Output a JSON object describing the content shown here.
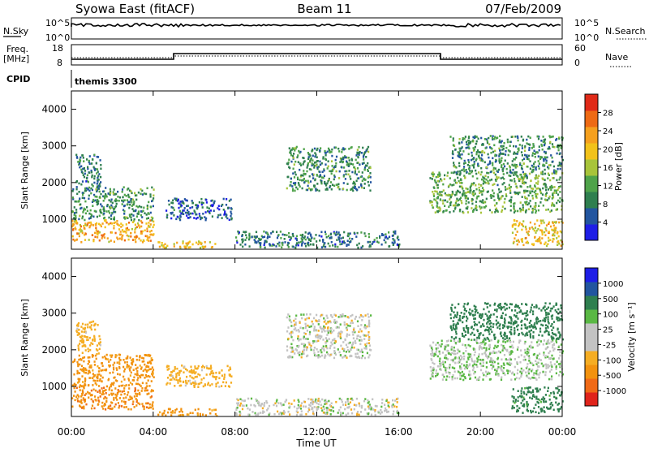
{
  "header": {
    "station": "Syowa East (fitACF)",
    "beam": "Beam 11",
    "date": "07/Feb/2009"
  },
  "top_panel": {
    "left_label": "N.Sky",
    "right_label": "N.Search",
    "left_ticks": [
      "10^5",
      "10^0"
    ],
    "right_ticks": [
      "10^5",
      "10^0"
    ]
  },
  "freq_panel": {
    "left_label_1": "Freq.",
    "left_label_2": "[MHz]",
    "left_ticks": [
      "18",
      "8"
    ],
    "right_ticks": [
      "60",
      "0"
    ],
    "right_label": "Nave",
    "cpid_label": "CPID",
    "cpid_value": "themis 3300"
  },
  "colors": {
    "power": [
      "#1e1ee6",
      "#22559f",
      "#2f7f4f",
      "#4fa34a",
      "#a8c43a",
      "#f2c21a",
      "#f5a01e",
      "#ee6a14",
      "#e02a18"
    ],
    "velocity": [
      "#e0241b",
      "#f06a17",
      "#f2920f",
      "#f5ad23",
      "#c3c3c3",
      "#c3c3c3",
      "#5ab844",
      "#2f7f4f",
      "#22559f",
      "#1e1ee6"
    ]
  },
  "chart_data": [
    {
      "type": "heatmap",
      "title": "Power",
      "ylabel": "Slant Range [km]",
      "xlabel": "",
      "x_ticks": [
        "00:00",
        "04:00",
        "08:00",
        "12:00",
        "16:00",
        "20:00",
        "00:00"
      ],
      "x_range_hours": [
        0,
        24
      ],
      "y_ticks": [
        "1000",
        "2000",
        "3000",
        "4000"
      ],
      "ylim": [
        180,
        4500
      ],
      "colorbar": {
        "label": "Power [dB]",
        "ticks": [
          "4",
          "8",
          "12",
          "16",
          "20",
          "24",
          "28"
        ],
        "range": [
          0,
          32
        ]
      },
      "regions": [
        {
          "t": [
            0.0,
            4.0
          ],
          "r": [
            400,
            1000
          ],
          "value": 22
        },
        {
          "t": [
            0.0,
            4.0
          ],
          "r": [
            1000,
            1900
          ],
          "value": 10
        },
        {
          "t": [
            0.2,
            1.4
          ],
          "r": [
            1900,
            2800
          ],
          "value": 8
        },
        {
          "t": [
            4.2,
            7.2
          ],
          "r": [
            220,
            420
          ],
          "value": 20
        },
        {
          "t": [
            4.6,
            7.8
          ],
          "r": [
            1000,
            1600
          ],
          "value": 6
        },
        {
          "t": [
            10.5,
            14.6
          ],
          "r": [
            1800,
            3000
          ],
          "value": 10
        },
        {
          "t": [
            17.5,
            24.0
          ],
          "r": [
            1200,
            2300
          ],
          "value": 12
        },
        {
          "t": [
            21.5,
            24.0
          ],
          "r": [
            300,
            1000
          ],
          "value": 20
        },
        {
          "t": [
            18.5,
            24.0
          ],
          "r": [
            2300,
            3300
          ],
          "value": 10
        },
        {
          "t": [
            8.0,
            16.0
          ],
          "r": [
            250,
            700
          ],
          "value": 8
        }
      ]
    },
    {
      "type": "heatmap",
      "title": "Velocity",
      "ylabel": "Slant Range [km]",
      "xlabel": "Time UT",
      "x_ticks": [
        "00:00",
        "04:00",
        "08:00",
        "12:00",
        "16:00",
        "20:00",
        "00:00"
      ],
      "x_range_hours": [
        0,
        24
      ],
      "y_ticks": [
        "1000",
        "2000",
        "3000",
        "4000"
      ],
      "ylim": [
        180,
        4500
      ],
      "colorbar": {
        "label": "Velocity [m s⁻¹]",
        "ticks": [
          "1000",
          "500",
          "100",
          "25",
          "-25",
          "-100",
          "-500",
          "-1000"
        ]
      },
      "regions": [
        {
          "t": [
            0.0,
            4.0
          ],
          "r": [
            400,
            1000
          ],
          "value": -400
        },
        {
          "t": [
            0.0,
            4.0
          ],
          "r": [
            1000,
            1900
          ],
          "value": -150
        },
        {
          "t": [
            0.2,
            1.4
          ],
          "r": [
            1900,
            2800
          ],
          "value": -60
        },
        {
          "t": [
            4.2,
            7.2
          ],
          "r": [
            220,
            420
          ],
          "value": -120
        },
        {
          "t": [
            4.6,
            7.8
          ],
          "r": [
            1000,
            1600
          ],
          "value": -60
        },
        {
          "t": [
            10.5,
            14.6
          ],
          "r": [
            1800,
            3000
          ],
          "value": 0
        },
        {
          "t": [
            17.5,
            24.0
          ],
          "r": [
            1200,
            2300
          ],
          "value": 20
        },
        {
          "t": [
            21.5,
            24.0
          ],
          "r": [
            300,
            1000
          ],
          "value": 150
        },
        {
          "t": [
            18.5,
            24.0
          ],
          "r": [
            2300,
            3300
          ],
          "value": 200
        },
        {
          "t": [
            8.0,
            16.0
          ],
          "r": [
            250,
            700
          ],
          "value": 0
        }
      ]
    }
  ]
}
